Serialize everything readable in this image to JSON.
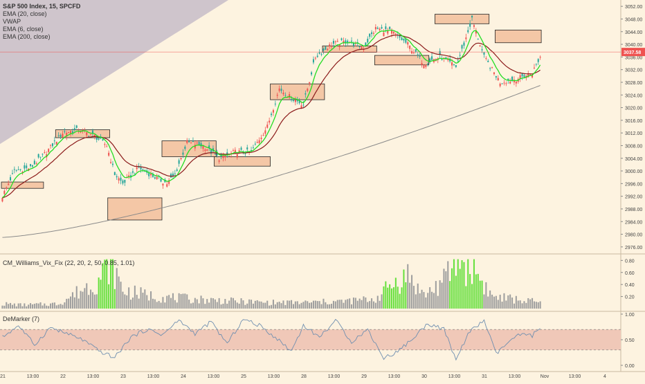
{
  "chart_data": {
    "type": "candlestick",
    "title": "S&P 500 Index, 15, SPCFD",
    "indicators": [
      "EMA (20, close)",
      "VWAP",
      "EMA (6, close)",
      "EMA (200, close)"
    ],
    "price_scale": {
      "ylim": [
        2974,
        3054
      ],
      "ticks": [
        "3052.00",
        "3048.00",
        "3044.00",
        "3040.00",
        "3036.00",
        "3032.00",
        "3028.00",
        "3024.00",
        "3020.00",
        "3016.00",
        "3012.00",
        "3008.00",
        "3004.00",
        "3000.00",
        "2996.00",
        "2992.00",
        "2988.00",
        "2984.00",
        "2980.00",
        "2976.00"
      ],
      "last_price": "3037.58",
      "last_price_color": "#ef5350"
    },
    "x_ticks": [
      "21",
      "13:00",
      "22",
      "13:00",
      "23",
      "13:00",
      "24",
      "13:00",
      "25",
      "13:00",
      "28",
      "13:00",
      "29",
      "13:00",
      "30",
      "13:00",
      "31",
      "13:00",
      "Nov",
      "13:00",
      "4"
    ],
    "candles": {
      "anchors": [
        [
          0,
          2992
        ],
        [
          6,
          3000
        ],
        [
          14,
          3001
        ],
        [
          22,
          3006
        ],
        [
          30,
          3012
        ],
        [
          38,
          3013
        ],
        [
          46,
          3011
        ],
        [
          52,
          3008
        ],
        [
          56,
          2999
        ],
        [
          60,
          2996
        ],
        [
          68,
          3001
        ],
        [
          76,
          2998
        ],
        [
          82,
          2996
        ],
        [
          86,
          2999
        ],
        [
          92,
          3009
        ],
        [
          100,
          3008
        ],
        [
          108,
          3004
        ],
        [
          116,
          3006
        ],
        [
          124,
          3006
        ],
        [
          132,
          3014
        ],
        [
          138,
          3026
        ],
        [
          144,
          3023
        ],
        [
          150,
          3021
        ],
        [
          156,
          3036
        ],
        [
          164,
          3040
        ],
        [
          172,
          3041
        ],
        [
          180,
          3039
        ],
        [
          186,
          3045
        ],
        [
          194,
          3044
        ],
        [
          202,
          3040
        ],
        [
          210,
          3034
        ],
        [
          218,
          3036
        ],
        [
          226,
          3033
        ],
        [
          230,
          3040
        ],
        [
          234,
          3048
        ],
        [
          240,
          3036
        ],
        [
          248,
          3028
        ],
        [
          256,
          3029
        ],
        [
          264,
          3031
        ],
        [
          268,
          3036
        ]
      ],
      "count": 269,
      "up_color": "#ef5350",
      "down_color": "#26a69a"
    },
    "zones": [
      {
        "from_bar": 0,
        "to_bar": 20,
        "low": 2994.5,
        "high": 2996.5
      },
      {
        "from_bar": 27,
        "to_bar": 53,
        "low": 3010.5,
        "high": 3013
      },
      {
        "from_bar": 53,
        "to_bar": 79,
        "low": 2984.5,
        "high": 2991.5
      },
      {
        "from_bar": 80,
        "to_bar": 106,
        "low": 3004.5,
        "high": 3009.5
      },
      {
        "from_bar": 106,
        "to_bar": 133,
        "low": 3001.5,
        "high": 3004.5
      },
      {
        "from_bar": 134,
        "to_bar": 160,
        "low": 3022.5,
        "high": 3027.5
      },
      {
        "from_bar": 160,
        "to_bar": 186,
        "low": 3037.5,
        "high": 3039.5
      },
      {
        "from_bar": 186,
        "to_bar": 212,
        "low": 3033.5,
        "high": 3036.5
      },
      {
        "from_bar": 216,
        "to_bar": 242,
        "low": 3046.5,
        "high": 3049.5
      },
      {
        "from_bar": 246,
        "to_bar": 268,
        "low": 3040.5,
        "high": 3044.5
      }
    ],
    "vix_fix": {
      "title": "CM_Williams_Vix_Fix (22, 20, 2, 50, 0.85, 1.01)",
      "ylim": [
        0,
        0.85
      ],
      "ticks": [
        "0.80",
        "0.60",
        "0.40",
        "0.20"
      ],
      "anchors": [
        [
          0,
          0.08
        ],
        [
          10,
          0.06
        ],
        [
          28,
          0.08
        ],
        [
          48,
          0.48
        ],
        [
          54,
          0.78
        ],
        [
          60,
          0.3
        ],
        [
          72,
          0.22
        ],
        [
          84,
          0.18
        ],
        [
          100,
          0.15
        ],
        [
          116,
          0.12
        ],
        [
          132,
          0.1
        ],
        [
          150,
          0.1
        ],
        [
          170,
          0.12
        ],
        [
          186,
          0.16
        ],
        [
          194,
          0.4
        ],
        [
          202,
          0.55
        ],
        [
          210,
          0.22
        ],
        [
          220,
          0.45
        ],
        [
          226,
          0.8
        ],
        [
          234,
          0.7
        ],
        [
          244,
          0.2
        ],
        [
          268,
          0.1
        ]
      ],
      "highlight_ranges": [
        [
          48,
          56
        ],
        [
          190,
          201
        ],
        [
          223,
          239
        ]
      ],
      "bar_color": "#9e9e9e",
      "highlight_color": "#66e03c"
    },
    "demarker": {
      "title": "DeMarker (7)",
      "ylim": [
        0,
        1
      ],
      "ticks": [
        "1.00",
        "0.50",
        "0.00"
      ],
      "band": [
        0.3,
        0.7
      ],
      "anchors": [
        [
          0,
          0.55
        ],
        [
          8,
          0.78
        ],
        [
          16,
          0.4
        ],
        [
          24,
          0.74
        ],
        [
          32,
          0.62
        ],
        [
          40,
          0.5
        ],
        [
          48,
          0.28
        ],
        [
          56,
          0.15
        ],
        [
          64,
          0.55
        ],
        [
          72,
          0.7
        ],
        [
          80,
          0.6
        ],
        [
          88,
          0.88
        ],
        [
          96,
          0.62
        ],
        [
          104,
          0.85
        ],
        [
          112,
          0.42
        ],
        [
          120,
          0.9
        ],
        [
          128,
          0.78
        ],
        [
          136,
          0.55
        ],
        [
          144,
          0.28
        ],
        [
          150,
          0.78
        ],
        [
          158,
          0.55
        ],
        [
          166,
          0.88
        ],
        [
          174,
          0.46
        ],
        [
          182,
          0.7
        ],
        [
          190,
          0.14
        ],
        [
          196,
          0.25
        ],
        [
          204,
          0.5
        ],
        [
          212,
          0.82
        ],
        [
          220,
          0.7
        ],
        [
          226,
          0.1
        ],
        [
          232,
          0.62
        ],
        [
          240,
          0.88
        ],
        [
          246,
          0.22
        ],
        [
          252,
          0.45
        ],
        [
          258,
          0.6
        ],
        [
          264,
          0.58
        ],
        [
          268,
          0.75
        ]
      ],
      "line_color": "#6f8fb0"
    },
    "colors": {
      "background": "#fdf3e0",
      "ema_fast": "#22dd22",
      "ema_mid": "#8b1a1a",
      "ema_slow": "#8a8a8a",
      "zone_fill": "#f4c7a6",
      "wedge_fill": "#c7bcc8",
      "demarker_band": "#f0c8b8"
    }
  }
}
